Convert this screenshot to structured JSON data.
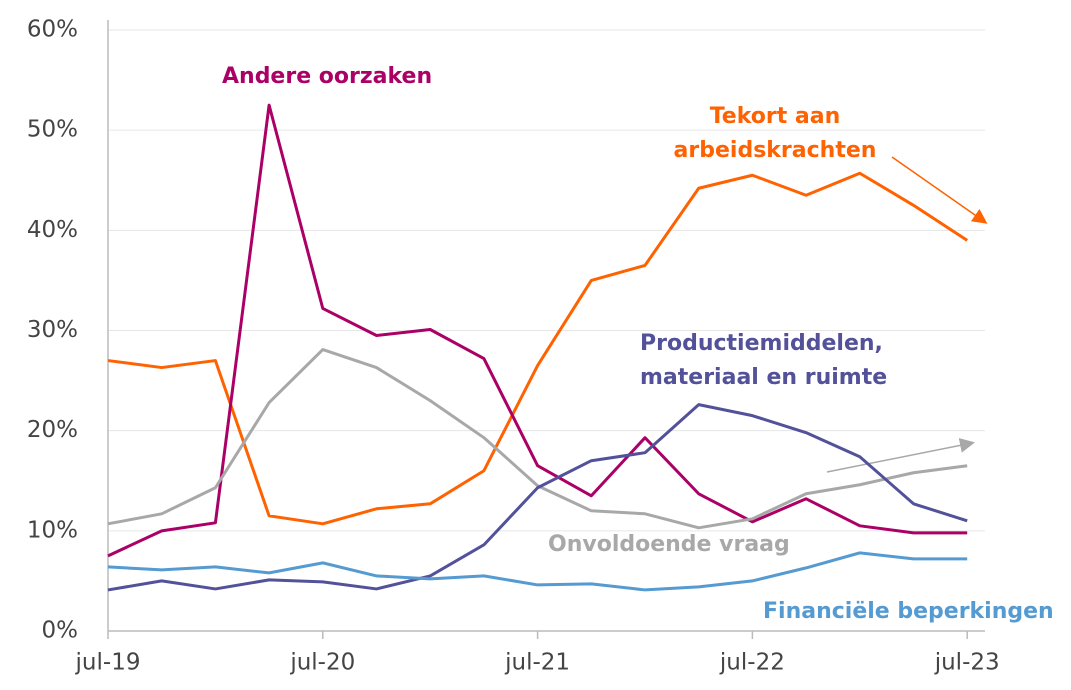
{
  "chart_data": {
    "type": "line",
    "categories": [
      "jul-19",
      null,
      null,
      null,
      "jul-20",
      null,
      null,
      null,
      "jul-21",
      null,
      null,
      null,
      "jul-22",
      null,
      null,
      null,
      "jul-23"
    ],
    "series": [
      {
        "name": "Tekort aan arbeidskrachten",
        "color": "#ff6200",
        "values": [
          27,
          26.3,
          27,
          11.5,
          10.7,
          12.2,
          12.7,
          16,
          26.5,
          35,
          36.5,
          44.2,
          45.5,
          43.5,
          45.7,
          42.5,
          39
        ]
      },
      {
        "name": "Andere oorzaken",
        "color": "#ab0066",
        "values": [
          7.5,
          10,
          10.8,
          52.5,
          32.2,
          29.5,
          30.1,
          27.2,
          16.5,
          13.5,
          19.3,
          13.7,
          10.9,
          13.2,
          10.5,
          9.8,
          9.8
        ]
      },
      {
        "name": "Onvoldoende vraag",
        "color": "#a8a8a8",
        "values": [
          10.7,
          11.7,
          14.3,
          22.8,
          28.1,
          26.3,
          23,
          19.3,
          14.5,
          12,
          11.7,
          10.3,
          11.2,
          13.7,
          14.6,
          15.8,
          16.5
        ]
      },
      {
        "name": "Productiemiddelen, materiaal en ruimte",
        "color": "#525199",
        "values": [
          4.1,
          5,
          4.2,
          5.1,
          4.9,
          4.2,
          5.5,
          8.6,
          14.3,
          17,
          17.8,
          22.6,
          21.5,
          19.8,
          17.4,
          12.7,
          11
        ]
      },
      {
        "name": "Financiële beperkingen",
        "color": "#559bd1",
        "values": [
          6.4,
          6.1,
          6.4,
          5.8,
          6.8,
          5.5,
          5.2,
          5.5,
          4.6,
          4.7,
          4.1,
          4.4,
          5,
          6.3,
          7.8,
          7.2,
          7.2
        ]
      }
    ],
    "ylim": [
      0,
      60
    ],
    "yticks": [
      {
        "value": 0,
        "label": "0%"
      },
      {
        "value": 10,
        "label": "10%"
      },
      {
        "value": 20,
        "label": "20%"
      },
      {
        "value": 30,
        "label": "30%"
      },
      {
        "value": 40,
        "label": "40%"
      },
      {
        "value": 50,
        "label": "50%"
      },
      {
        "value": 60,
        "label": "60%"
      }
    ],
    "grid": true
  }
}
